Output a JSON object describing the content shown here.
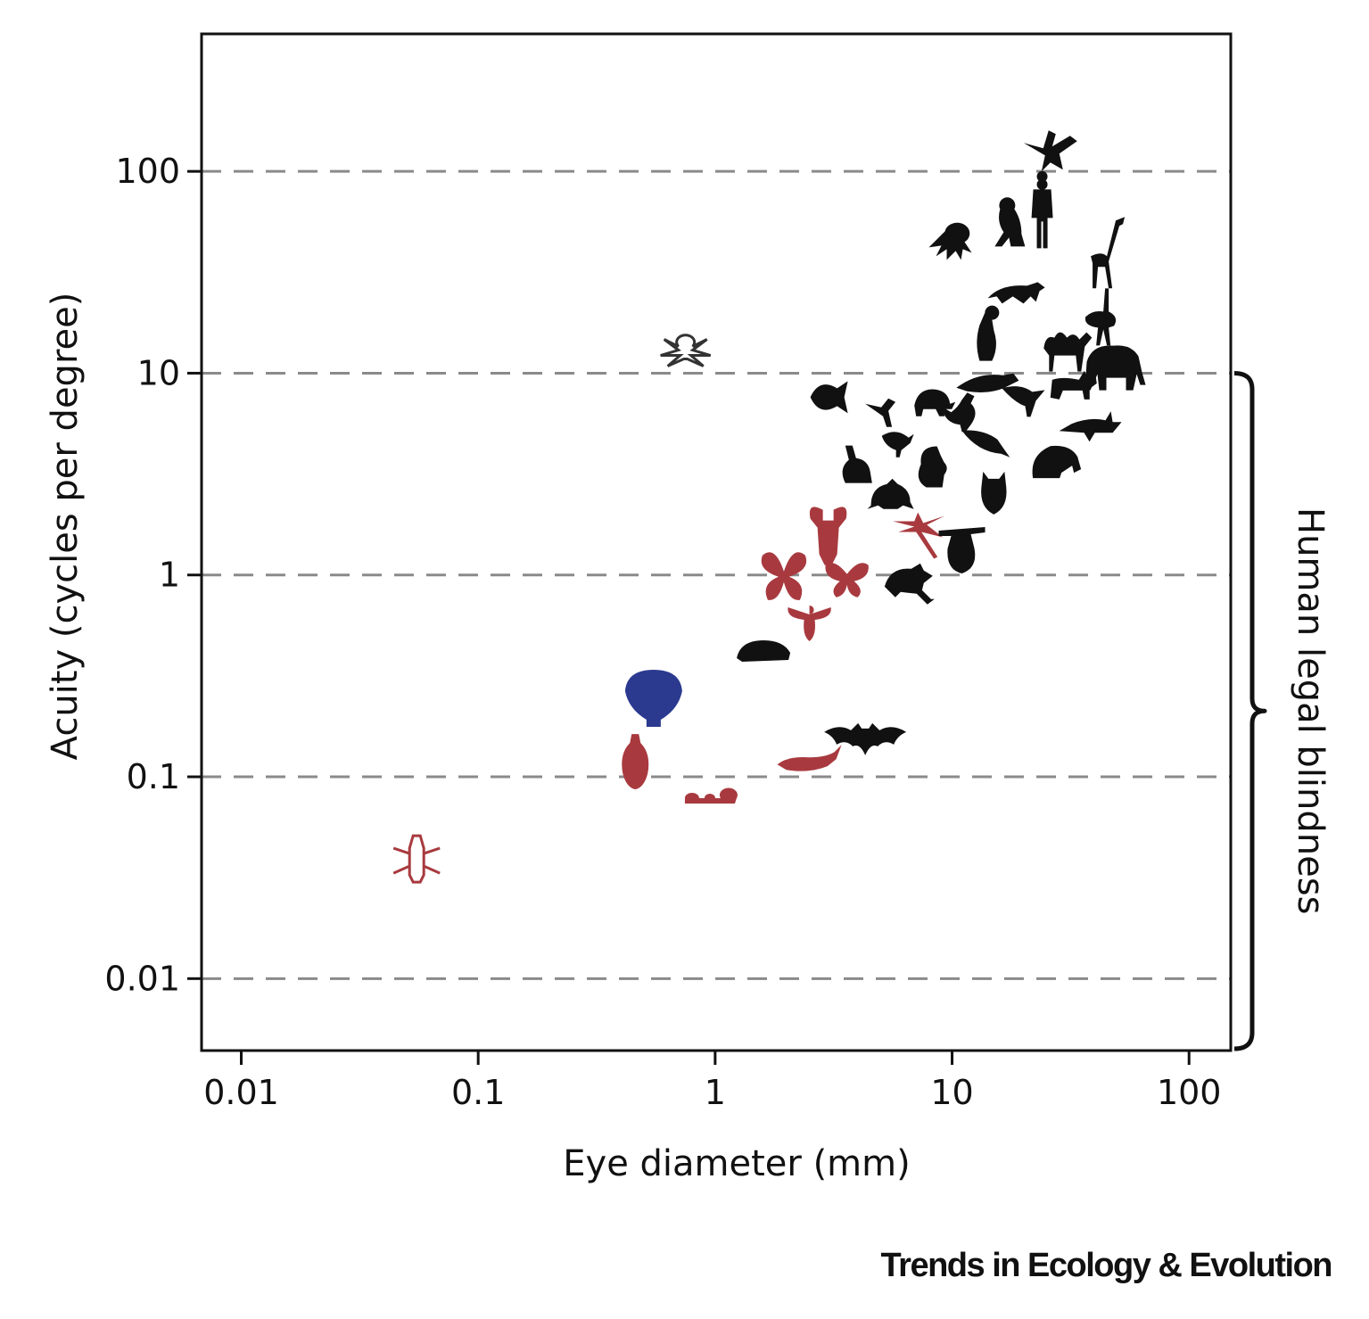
{
  "chart_data": {
    "type": "scatter",
    "title": "",
    "xlabel": "Eye diameter (mm)",
    "ylabel": "Acuity (cycles per degree)",
    "xscale": "log",
    "yscale": "log",
    "xlim": [
      0.0068,
      150
    ],
    "ylim": [
      0.0044,
      480
    ],
    "xticks": [
      0.01,
      0.1,
      1,
      10,
      100
    ],
    "xtick_labels": [
      "0.01",
      "0.1",
      "1",
      "10",
      "100"
    ],
    "yticks": [
      0.01,
      0.1,
      1,
      10,
      100
    ],
    "ytick_labels": [
      "0.01",
      "0.1",
      "1",
      "10",
      "100"
    ],
    "grid": "horizontal dashed at y ticks",
    "bracket": {
      "label": "Human legal blindness",
      "y_range": [
        0.0044,
        10
      ]
    },
    "colors": {
      "vertebrate": "#111111",
      "arthropod": "#a83a3f",
      "mollusc": "#2b3a8f",
      "spider": "#333333"
    },
    "points": [
      {
        "animal": "eagle",
        "x": 26,
        "y": 125,
        "group": "vertebrate",
        "icon": "eagle-icon"
      },
      {
        "animal": "human",
        "x": 24,
        "y": 60,
        "group": "vertebrate",
        "icon": "human-icon"
      },
      {
        "animal": "monkey",
        "x": 18,
        "y": 52,
        "group": "vertebrate",
        "icon": "monkey-icon"
      },
      {
        "animal": "octopus",
        "x": 10,
        "y": 42,
        "group": "vertebrate",
        "icon": "octopus-icon"
      },
      {
        "animal": "giraffe",
        "x": 45,
        "y": 38,
        "group": "vertebrate",
        "icon": "giraffe-icon"
      },
      {
        "animal": "cheetah",
        "x": 19,
        "y": 25,
        "group": "vertebrate",
        "icon": "cheetah-icon"
      },
      {
        "animal": "ostrich",
        "x": 42,
        "y": 19,
        "group": "vertebrate",
        "icon": "ostrich-icon"
      },
      {
        "animal": "penguin",
        "x": 14,
        "y": 15,
        "group": "vertebrate",
        "icon": "penguin-icon"
      },
      {
        "animal": "camel",
        "x": 30,
        "y": 13,
        "group": "vertebrate",
        "icon": "camel-icon"
      },
      {
        "animal": "elephant",
        "x": 48,
        "y": 10.5,
        "group": "vertebrate",
        "icon": "elephant-icon"
      },
      {
        "animal": "jumping spider",
        "x": 0.75,
        "y": 12.5,
        "group": "spider",
        "icon": "spider-icon"
      },
      {
        "animal": "goldfish",
        "x": 3.0,
        "y": 7.6,
        "group": "vertebrate",
        "icon": "fish-icon"
      },
      {
        "animal": "hummingbird",
        "x": 5.2,
        "y": 6.5,
        "group": "vertebrate",
        "icon": "hummingbird-icon"
      },
      {
        "animal": "turtle",
        "x": 8.1,
        "y": 7.2,
        "group": "vertebrate",
        "icon": "turtle-icon"
      },
      {
        "animal": "seal",
        "x": 14,
        "y": 9.0,
        "group": "vertebrate",
        "icon": "seal-icon"
      },
      {
        "animal": "chicken",
        "x": 11,
        "y": 6.4,
        "group": "vertebrate",
        "icon": "chicken-icon"
      },
      {
        "animal": "crow",
        "x": 20,
        "y": 7.6,
        "group": "vertebrate",
        "icon": "crow-icon"
      },
      {
        "animal": "cat",
        "x": 32,
        "y": 8.9,
        "group": "vertebrate",
        "icon": "cat-icon"
      },
      {
        "animal": "shark",
        "x": 38,
        "y": 5.5,
        "group": "vertebrate",
        "icon": "shark-icon"
      },
      {
        "animal": "small bird",
        "x": 5.8,
        "y": 4.6,
        "group": "vertebrate",
        "icon": "small-bird-icon"
      },
      {
        "animal": "ray",
        "x": 14,
        "y": 4.6,
        "group": "vertebrate",
        "icon": "ray-icon"
      },
      {
        "animal": "walrus",
        "x": 27,
        "y": 3.7,
        "group": "vertebrate",
        "icon": "walrus-icon"
      },
      {
        "animal": "rabbit",
        "x": 4.0,
        "y": 3.5,
        "group": "vertebrate",
        "icon": "rabbit-icon"
      },
      {
        "animal": "squirrel",
        "x": 8.2,
        "y": 3.4,
        "group": "vertebrate",
        "icon": "squirrel-icon"
      },
      {
        "animal": "owl",
        "x": 15,
        "y": 2.6,
        "group": "vertebrate",
        "icon": "owl-icon"
      },
      {
        "animal": "frog",
        "x": 5.5,
        "y": 2.5,
        "group": "vertebrate",
        "icon": "frog-icon"
      },
      {
        "animal": "mantis shrimp",
        "x": 3.0,
        "y": 1.55,
        "group": "arthropod",
        "icon": "mantis-shrimp-icon"
      },
      {
        "animal": "dragonfly",
        "x": 7.3,
        "y": 1.6,
        "group": "arthropod",
        "icon": "dragonfly-icon"
      },
      {
        "animal": "sloth",
        "x": 11,
        "y": 1.3,
        "group": "vertebrate",
        "icon": "sloth-icon"
      },
      {
        "animal": "butterfly",
        "x": 1.95,
        "y": 1.0,
        "group": "arthropod",
        "icon": "butterfly-icon"
      },
      {
        "animal": "moth",
        "x": 3.6,
        "y": 0.97,
        "group": "arthropod",
        "icon": "moth-icon"
      },
      {
        "animal": "rat",
        "x": 6.5,
        "y": 0.95,
        "group": "vertebrate",
        "icon": "rat-icon"
      },
      {
        "animal": "bee",
        "x": 2.5,
        "y": 0.6,
        "group": "arthropod",
        "icon": "bee-icon"
      },
      {
        "animal": "mouse",
        "x": 1.6,
        "y": 0.42,
        "group": "vertebrate",
        "icon": "mouse-icon"
      },
      {
        "animal": "scallop",
        "x": 0.55,
        "y": 0.25,
        "group": "mollusc",
        "icon": "scallop-icon"
      },
      {
        "animal": "bat",
        "x": 4.3,
        "y": 0.16,
        "group": "vertebrate",
        "icon": "bat-icon"
      },
      {
        "animal": "fly",
        "x": 0.46,
        "y": 0.12,
        "group": "arthropod",
        "icon": "fly-icon"
      },
      {
        "animal": "shrimp",
        "x": 2.5,
        "y": 0.115,
        "group": "arthropod",
        "icon": "shrimp-icon"
      },
      {
        "animal": "ant",
        "x": 0.95,
        "y": 0.08,
        "group": "arthropod",
        "icon": "ant-icon"
      },
      {
        "animal": "fruit fly",
        "x": 0.055,
        "y": 0.04,
        "group": "arthropod",
        "icon": "small-insect-icon"
      }
    ]
  },
  "footer": {
    "journal": "Trends in Ecology & Evolution"
  }
}
